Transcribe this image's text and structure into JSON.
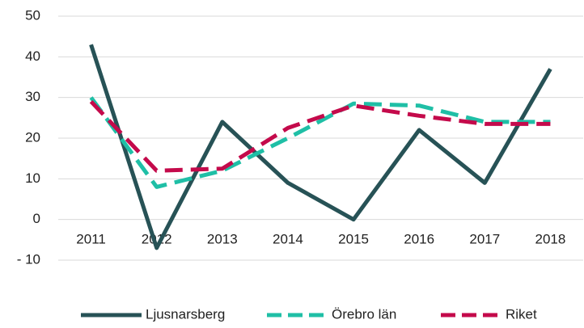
{
  "chart_data": {
    "type": "line",
    "categories": [
      "2011",
      "2012",
      "2013",
      "2014",
      "2015",
      "2016",
      "2017",
      "2018"
    ],
    "series": [
      {
        "name": "Ljusnarsberg",
        "color": "#275256",
        "dash": false,
        "values": [
          43,
          -7,
          24,
          9,
          0,
          22,
          9,
          37
        ]
      },
      {
        "name": "Örebro län",
        "color": "#1fbfa6",
        "dash": true,
        "values": [
          30,
          8,
          12,
          20,
          28.5,
          28,
          24,
          24
        ]
      },
      {
        "name": "Riket",
        "color": "#c40a4b",
        "dash": true,
        "values": [
          29,
          12,
          12.5,
          22.5,
          28,
          25.5,
          23.5,
          23.5
        ]
      }
    ],
    "ylim": [
      -10,
      50
    ],
    "yticks": [
      {
        "value": -10,
        "label": "- 10"
      },
      0,
      10,
      20,
      30,
      40,
      50
    ],
    "grid": true,
    "legend": "bottom"
  }
}
